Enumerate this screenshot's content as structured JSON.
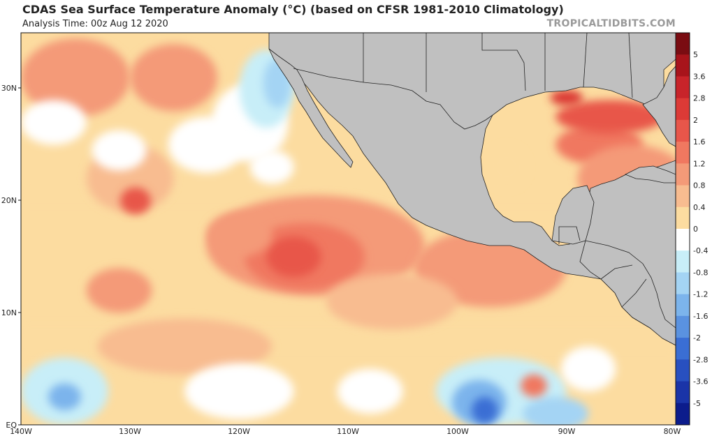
{
  "title": "CDAS Sea Surface Temperature Anomaly (°C) (based on CFSR 1981-2010 Climatology)",
  "subtitle": "Analysis Time: 00z Aug 12 2020",
  "watermark": "TROPICALTIDBITS.COM",
  "map": {
    "lon_range": [
      -140,
      -80
    ],
    "lat_range": [
      0,
      35
    ],
    "lat_ticks": [
      {
        "value": 30,
        "label": "30N"
      },
      {
        "value": 20,
        "label": "20N"
      },
      {
        "value": 10,
        "label": "10N"
      },
      {
        "value": 0,
        "label": "EQ"
      }
    ],
    "lon_ticks": [
      {
        "value": -140,
        "label": "140W"
      },
      {
        "value": -130,
        "label": "130W"
      },
      {
        "value": -120,
        "label": "120W"
      },
      {
        "value": -110,
        "label": "110W"
      },
      {
        "value": -100,
        "label": "100W"
      },
      {
        "value": -90,
        "label": "90W"
      },
      {
        "value": -80,
        "label": "80W"
      }
    ],
    "land_color": "#c0c0c0",
    "border_color": "#222222"
  },
  "colorbar": {
    "labels": [
      "5",
      "3.6",
      "2.8",
      "2",
      "1.6",
      "1.2",
      "0.8",
      "0.4",
      "0",
      "-0.4",
      "-0.8",
      "-1.2",
      "-1.6",
      "-2",
      "-2.8",
      "-3.6",
      "-5"
    ],
    "colors": [
      "#7a0c12",
      "#a8141b",
      "#c8242a",
      "#dc3a36",
      "#e8564a",
      "#f07860",
      "#f49a78",
      "#f8bc90",
      "#fcdca0",
      "#ffffff",
      "#c8eef8",
      "#a4d4f4",
      "#7cb4ec",
      "#5a92e0",
      "#3a6ed4",
      "#2850c0",
      "#1a34a8",
      "#0c1c8c"
    ]
  },
  "anomaly_features": [
    {
      "lon": -135,
      "lat": 31,
      "rx": 5,
      "ry": 3.5,
      "value": 0.8
    },
    {
      "lon": -126,
      "lat": 31,
      "rx": 4,
      "ry": 3,
      "value": 1.0
    },
    {
      "lon": -130,
      "lat": 22,
      "rx": 4,
      "ry": 3,
      "value": 0.4
    },
    {
      "lon": -129.5,
      "lat": 20,
      "rx": 1.4,
      "ry": 1.2,
      "value": 1.6
    },
    {
      "lon": -123,
      "lat": 25,
      "rx": 3.5,
      "ry": 2.5,
      "value": -0.4
    },
    {
      "lon": -131,
      "lat": 24.5,
      "rx": 2.5,
      "ry": 1.8,
      "value": -0.4
    },
    {
      "lon": -119,
      "lat": 27,
      "rx": 3.5,
      "ry": 3.5,
      "value": -0.4
    },
    {
      "lon": -117.5,
      "lat": 30,
      "rx": 2.5,
      "ry": 3.5,
      "value": -0.8
    },
    {
      "lon": -116.5,
      "lat": 30.5,
      "rx": 1.3,
      "ry": 2.2,
      "value": -1.2
    },
    {
      "lon": -117,
      "lat": 23,
      "rx": 2,
      "ry": 1.5,
      "value": -0.4
    },
    {
      "lon": -137,
      "lat": 27,
      "rx": 3,
      "ry": 2,
      "value": -0.4
    },
    {
      "lon": -113,
      "lat": 16,
      "rx": 10,
      "ry": 4.5,
      "value": 0.8
    },
    {
      "lon": -114,
      "lat": 15,
      "rx": 5.5,
      "ry": 3,
      "value": 1.2
    },
    {
      "lon": -115,
      "lat": 15,
      "rx": 2.5,
      "ry": 1.8,
      "value": 1.6
    },
    {
      "lon": -120,
      "lat": 17,
      "rx": 3,
      "ry": 2,
      "value": 0.8
    },
    {
      "lon": -97,
      "lat": 14,
      "rx": 7,
      "ry": 3.5,
      "value": 0.8
    },
    {
      "lon": -106,
      "lat": 11,
      "rx": 6,
      "ry": 2.5,
      "value": 0.4
    },
    {
      "lon": -125,
      "lat": 7,
      "rx": 8,
      "ry": 2.5,
      "value": 0.4
    },
    {
      "lon": -136,
      "lat": 3,
      "rx": 4,
      "ry": 3,
      "value": -0.8
    },
    {
      "lon": -136,
      "lat": 2.5,
      "rx": 1.5,
      "ry": 1.2,
      "value": -1.6
    },
    {
      "lon": -120,
      "lat": 3,
      "rx": 5,
      "ry": 2.5,
      "value": -0.4
    },
    {
      "lon": -96,
      "lat": 3,
      "rx": 6,
      "ry": 3,
      "value": -0.8
    },
    {
      "lon": -98,
      "lat": 2,
      "rx": 2.5,
      "ry": 2,
      "value": -1.6
    },
    {
      "lon": -97.5,
      "lat": 1.3,
      "rx": 1.2,
      "ry": 1.2,
      "value": -2.8
    },
    {
      "lon": -91,
      "lat": 1,
      "rx": 3,
      "ry": 1.5,
      "value": -1.2
    },
    {
      "lon": -93,
      "lat": 3.5,
      "rx": 1.2,
      "ry": 1,
      "value": 1.2
    },
    {
      "lon": -88,
      "lat": 5,
      "rx": 2.5,
      "ry": 2,
      "value": -0.4
    },
    {
      "lon": -108,
      "lat": 3,
      "rx": 3,
      "ry": 2,
      "value": -0.4
    },
    {
      "lon": -131,
      "lat": 12,
      "rx": 3,
      "ry": 2,
      "value": 0.8
    },
    {
      "lon": -87,
      "lat": 25,
      "rx": 4,
      "ry": 1.8,
      "value": 1.2
    },
    {
      "lon": -86,
      "lat": 27.5,
      "rx": 5,
      "ry": 1.5,
      "value": 1.6
    },
    {
      "lon": -90,
      "lat": 29.2,
      "rx": 1.5,
      "ry": 0.7,
      "value": 2.0
    },
    {
      "lon": -84,
      "lat": 22,
      "rx": 5,
      "ry": 3,
      "value": 0.8
    },
    {
      "lon": -95.5,
      "lat": 23,
      "rx": 1.8,
      "ry": 1.8,
      "value": 0.0
    }
  ]
}
